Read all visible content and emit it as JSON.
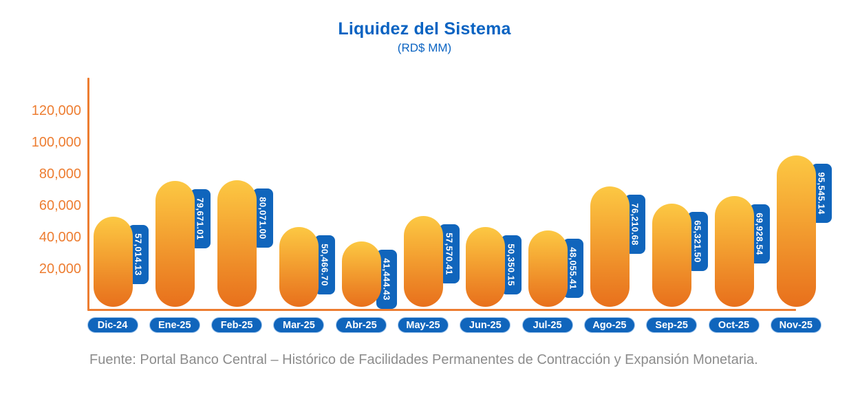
{
  "title": "Liquidez del Sistema",
  "subtitle": "(RD$ MM)",
  "source_note": "Fuente: Portal Banco Central – Histórico de Facilidades Permanentes de Contracción y Expansión Monetaria.",
  "colors": {
    "title_blue": "#0A63C2",
    "label_blue": "#1065BC",
    "axis_orange": "#ED7D31",
    "bar_gradient_top": "#FCC843",
    "bar_gradient_bottom": "#E8701C",
    "value_text": "#FFFFFF",
    "source_gray": "#8C8C8C"
  },
  "chart_data": {
    "type": "bar",
    "title": "Liquidez del Sistema",
    "subtitle": "(RD$ MM)",
    "unit": "RD$ MM",
    "categories": [
      "Dic-24",
      "Ene-25",
      "Feb-25",
      "Mar-25",
      "Abr-25",
      "May-25",
      "Jun-25",
      "Jul-25",
      "Ago-25",
      "Sep-25",
      "Oct-25",
      "Nov-25"
    ],
    "values": [
      57014.13,
      79671.01,
      80071.0,
      50466.7,
      41444.43,
      57570.41,
      50350.15,
      48055.41,
      76210.68,
      65321.5,
      69928.54,
      95545.14
    ],
    "value_labels": [
      "57,014.13",
      "79,671.01",
      "80,071.00",
      "50,466.70",
      "41,444.43",
      "57,570.41",
      "50,350.15",
      "48,055.41",
      "76,210.68",
      "65,321.50",
      "69,928.54",
      "95,545.14"
    ],
    "yticks": [
      120000,
      100000,
      80000,
      60000,
      40000,
      20000
    ],
    "ytick_labels": [
      "120,000",
      "100,000",
      "80,000",
      "60,000",
      "40,000",
      "20,000"
    ],
    "ylim": [
      0,
      130000
    ],
    "grid": false,
    "legend": false,
    "bar_style": "rounded-pill-gradient",
    "value_label_style": "vertical-blue-tag"
  }
}
